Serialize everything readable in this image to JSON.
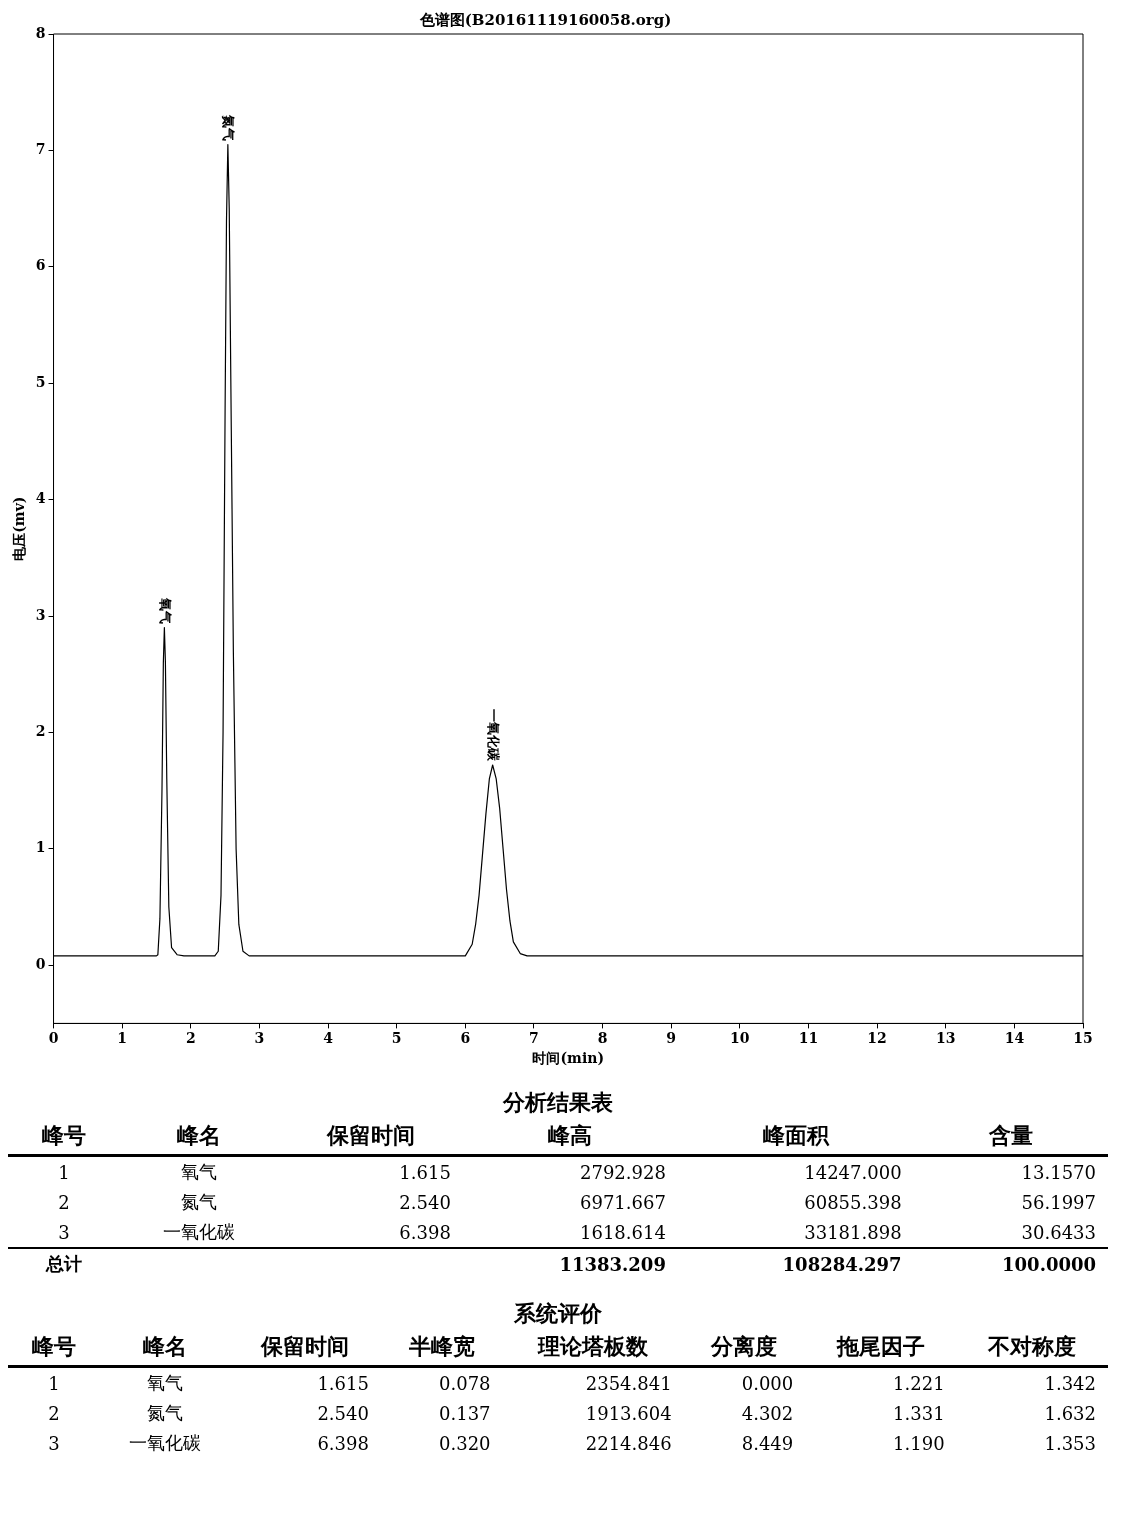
{
  "chart_data": [
    {
      "type": "line",
      "title": "色谱图(B20161119160058.org)",
      "xlabel": "时间(min)",
      "ylabel": "电压(mv)",
      "color": "#000000",
      "x": [
        0,
        1.5,
        1.52,
        1.55,
        1.58,
        1.6,
        1.615,
        1.63,
        1.65,
        1.68,
        1.72,
        1.8,
        1.9,
        2.35,
        2.4,
        2.44,
        2.47,
        2.5,
        2.52,
        2.54,
        2.56,
        2.59,
        2.62,
        2.66,
        2.7,
        2.76,
        2.85,
        6.0,
        6.1,
        6.15,
        6.2,
        6.25,
        6.3,
        6.35,
        6.398,
        6.45,
        6.5,
        6.55,
        6.6,
        6.65,
        6.7,
        6.8,
        6.9,
        15
      ],
      "values": [
        0.08,
        0.08,
        0.09,
        0.4,
        1.5,
        2.6,
        2.9,
        2.6,
        1.6,
        0.5,
        0.15,
        0.09,
        0.08,
        0.08,
        0.12,
        0.6,
        2.0,
        4.8,
        6.4,
        7.05,
        6.5,
        4.6,
        2.7,
        1.0,
        0.35,
        0.12,
        0.08,
        0.08,
        0.18,
        0.35,
        0.6,
        0.95,
        1.3,
        1.6,
        1.72,
        1.6,
        1.35,
        1.0,
        0.65,
        0.38,
        0.2,
        0.1,
        0.08,
        0.08
      ],
      "xlim": [
        0,
        15
      ],
      "xticks": [
        0,
        1,
        2,
        3,
        4,
        5,
        6,
        7,
        8,
        9,
        10,
        11,
        12,
        13,
        14,
        15
      ],
      "ylim": [
        -0.5,
        8
      ],
      "yticks": [
        0,
        1,
        2,
        3,
        4,
        5,
        6,
        7,
        8
      ],
      "annotations": [
        {
          "text": "氧气",
          "x": 1.615,
          "y": 2.9
        },
        {
          "text": "氮气",
          "x": 2.54,
          "y": 7.05
        },
        {
          "text": "一氧化碳",
          "x": 6.398,
          "y": 1.72
        }
      ]
    },
    {
      "type": "other",
      "title": "分析结果表",
      "annotations": [
        "峰号\t峰名\t保留时间\t峰高\t峰面积\t含量",
        "1\t氧气\t1.615\t2792.928\t14247.000\t13.1570",
        "2\t氮气\t2.540\t6971.667\t60855.398\t56.1997",
        "3\t一氧化碳\t6.398\t1618.614\t33181.898\t30.6433",
        "总计\t\t\t11383.209\t108284.297\t100.0000"
      ]
    },
    {
      "type": "other",
      "title": "系统评价",
      "annotations": [
        "峰号\t峰名\t保留时间\t半峰宽\t理论塔板数\t分离度\t拖尾因子\t不对称度",
        "1\t氧气\t1.615\t0.078\t2354.841\t0.000\t1.221\t1.342",
        "2\t氮气\t2.540\t0.137\t1913.604\t4.302\t1.331\t1.632",
        "3\t一氧化碳\t6.398\t0.320\t2214.846\t8.449\t1.190\t1.353"
      ]
    }
  ]
}
